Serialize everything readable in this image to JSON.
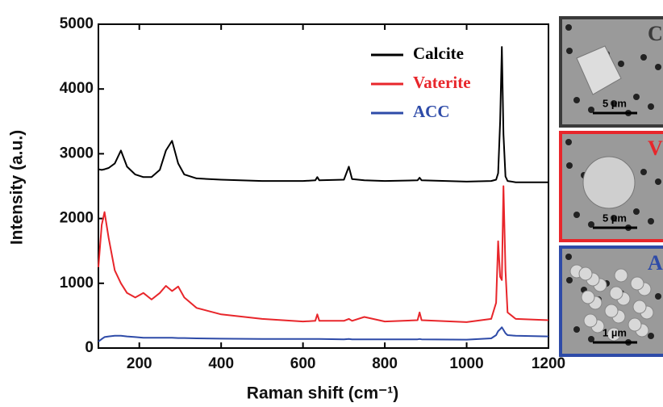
{
  "chart_data": {
    "type": "line",
    "xlabel": "Raman shift (cm⁻¹)",
    "ylabel": "Intensity (a.u.)",
    "x": [
      100,
      108,
      115,
      125,
      140,
      155,
      170,
      190,
      210,
      230,
      250,
      265,
      280,
      295,
      310,
      340,
      400,
      500,
      600,
      630,
      635,
      640,
      700,
      712,
      720,
      750,
      800,
      880,
      885,
      890,
      1000,
      1060,
      1072,
      1077,
      1082,
      1086,
      1090,
      1095,
      1100,
      1120,
      1200
    ],
    "series": [
      {
        "name": "Calcite",
        "color": "#000000",
        "values": [
          2760,
          2750,
          2760,
          2780,
          2850,
          3050,
          2800,
          2680,
          2640,
          2640,
          2750,
          3050,
          3200,
          2850,
          2680,
          2620,
          2600,
          2580,
          2580,
          2590,
          2640,
          2590,
          2600,
          2800,
          2610,
          2590,
          2580,
          2590,
          2630,
          2590,
          2570,
          2580,
          2600,
          2700,
          3500,
          4650,
          3300,
          2650,
          2580,
          2560,
          2560
        ]
      },
      {
        "name": "Vaterite",
        "color": "#e8262b",
        "values": [
          1250,
          1900,
          2100,
          1700,
          1200,
          1000,
          850,
          780,
          850,
          750,
          850,
          960,
          880,
          950,
          780,
          620,
          520,
          450,
          410,
          420,
          520,
          420,
          420,
          450,
          420,
          480,
          410,
          430,
          550,
          430,
          400,
          450,
          700,
          1650,
          1100,
          1050,
          2500,
          1200,
          550,
          450,
          430
        ]
      },
      {
        "name": "ACC",
        "color": "#2e4ba8",
        "values": [
          100,
          140,
          170,
          180,
          190,
          190,
          180,
          170,
          160,
          160,
          160,
          160,
          160,
          155,
          155,
          150,
          145,
          140,
          140,
          140,
          140,
          140,
          135,
          140,
          135,
          135,
          135,
          135,
          140,
          135,
          130,
          150,
          200,
          260,
          290,
          320,
          280,
          230,
          200,
          190,
          180
        ]
      }
    ],
    "xlim": [
      100,
      1200
    ],
    "xticks": [
      200,
      400,
      600,
      800,
      1000,
      1200
    ],
    "ylim": [
      0,
      5000
    ],
    "yticks": [
      0,
      1000,
      2000,
      3000,
      4000,
      5000
    ],
    "insets": [
      {
        "label": "C",
        "scale": "5 µm",
        "color": "#3a3a3a"
      },
      {
        "label": "V",
        "scale": "5 µm",
        "color": "#e8262b"
      },
      {
        "label": "A",
        "scale": "1 µm",
        "color": "#2e4ba8"
      }
    ]
  }
}
